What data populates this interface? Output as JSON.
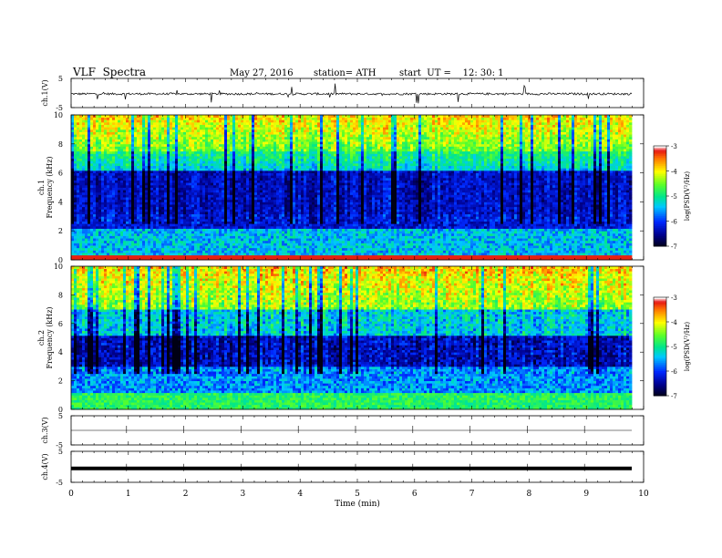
{
  "header": {
    "title": "VLF  Spectra",
    "date": "May 27, 2016",
    "station": "station= ATH",
    "start": "start  UT =    12: 30: 1"
  },
  "chart_data": [
    {
      "type": "line",
      "panel": "ch1-waveform",
      "ylabel": "ch.1(V)",
      "ylim": [
        -5,
        5
      ],
      "yticks": [
        "5",
        "-5"
      ],
      "xlim": [
        0,
        10
      ],
      "baseline": -0.3,
      "noise_amplitude": 0.6,
      "spike_amplitude": 3.5,
      "color": "#000000"
    },
    {
      "type": "heatmap",
      "panel": "ch1-spectrogram",
      "ylabel": "Frequency  (kHz)",
      "channel_label": "ch.1",
      "ylim": [
        0,
        10
      ],
      "yticks": [
        "0",
        "2",
        "4",
        "6",
        "8",
        "10"
      ],
      "xlim": [
        0,
        10
      ],
      "colorbar_label": "log(PSD(V²/Hz)",
      "colorbar_range": [
        -7,
        -3
      ],
      "colorbar_ticks": [
        "-3",
        "-4",
        "-5",
        "-6",
        "-7"
      ]
    },
    {
      "type": "heatmap",
      "panel": "ch2-spectrogram",
      "ylabel": "Frequency  (kHz)",
      "channel_label": "ch.2",
      "ylim": [
        0,
        10
      ],
      "yticks": [
        "0",
        "2",
        "4",
        "6",
        "8",
        "10"
      ],
      "xlim": [
        0,
        10
      ],
      "colorbar_label": "log(PSD(V²/Hz)",
      "colorbar_range": [
        -7,
        -3
      ],
      "colorbar_ticks": [
        "-3",
        "-4",
        "-5",
        "-6",
        "-7"
      ]
    },
    {
      "type": "line",
      "panel": "ch3-waveform",
      "ylabel": "ch.3(V)",
      "ylim": [
        -5,
        5
      ],
      "yticks": [
        "5",
        "-5"
      ],
      "xlim": [
        0,
        10
      ],
      "baseline": 0,
      "color": "#000000"
    },
    {
      "type": "line",
      "panel": "ch4-waveform",
      "ylabel": "ch.4(V)",
      "ylim": [
        -5,
        5
      ],
      "yticks": [
        "5",
        "-5"
      ],
      "xlim": [
        0,
        10
      ],
      "baseline": -0.5,
      "color": "#000000",
      "xlabel": "Time  (min)",
      "xticks": [
        "0",
        "1",
        "2",
        "3",
        "4",
        "5",
        "6",
        "7",
        "8",
        "9",
        "10"
      ]
    }
  ]
}
